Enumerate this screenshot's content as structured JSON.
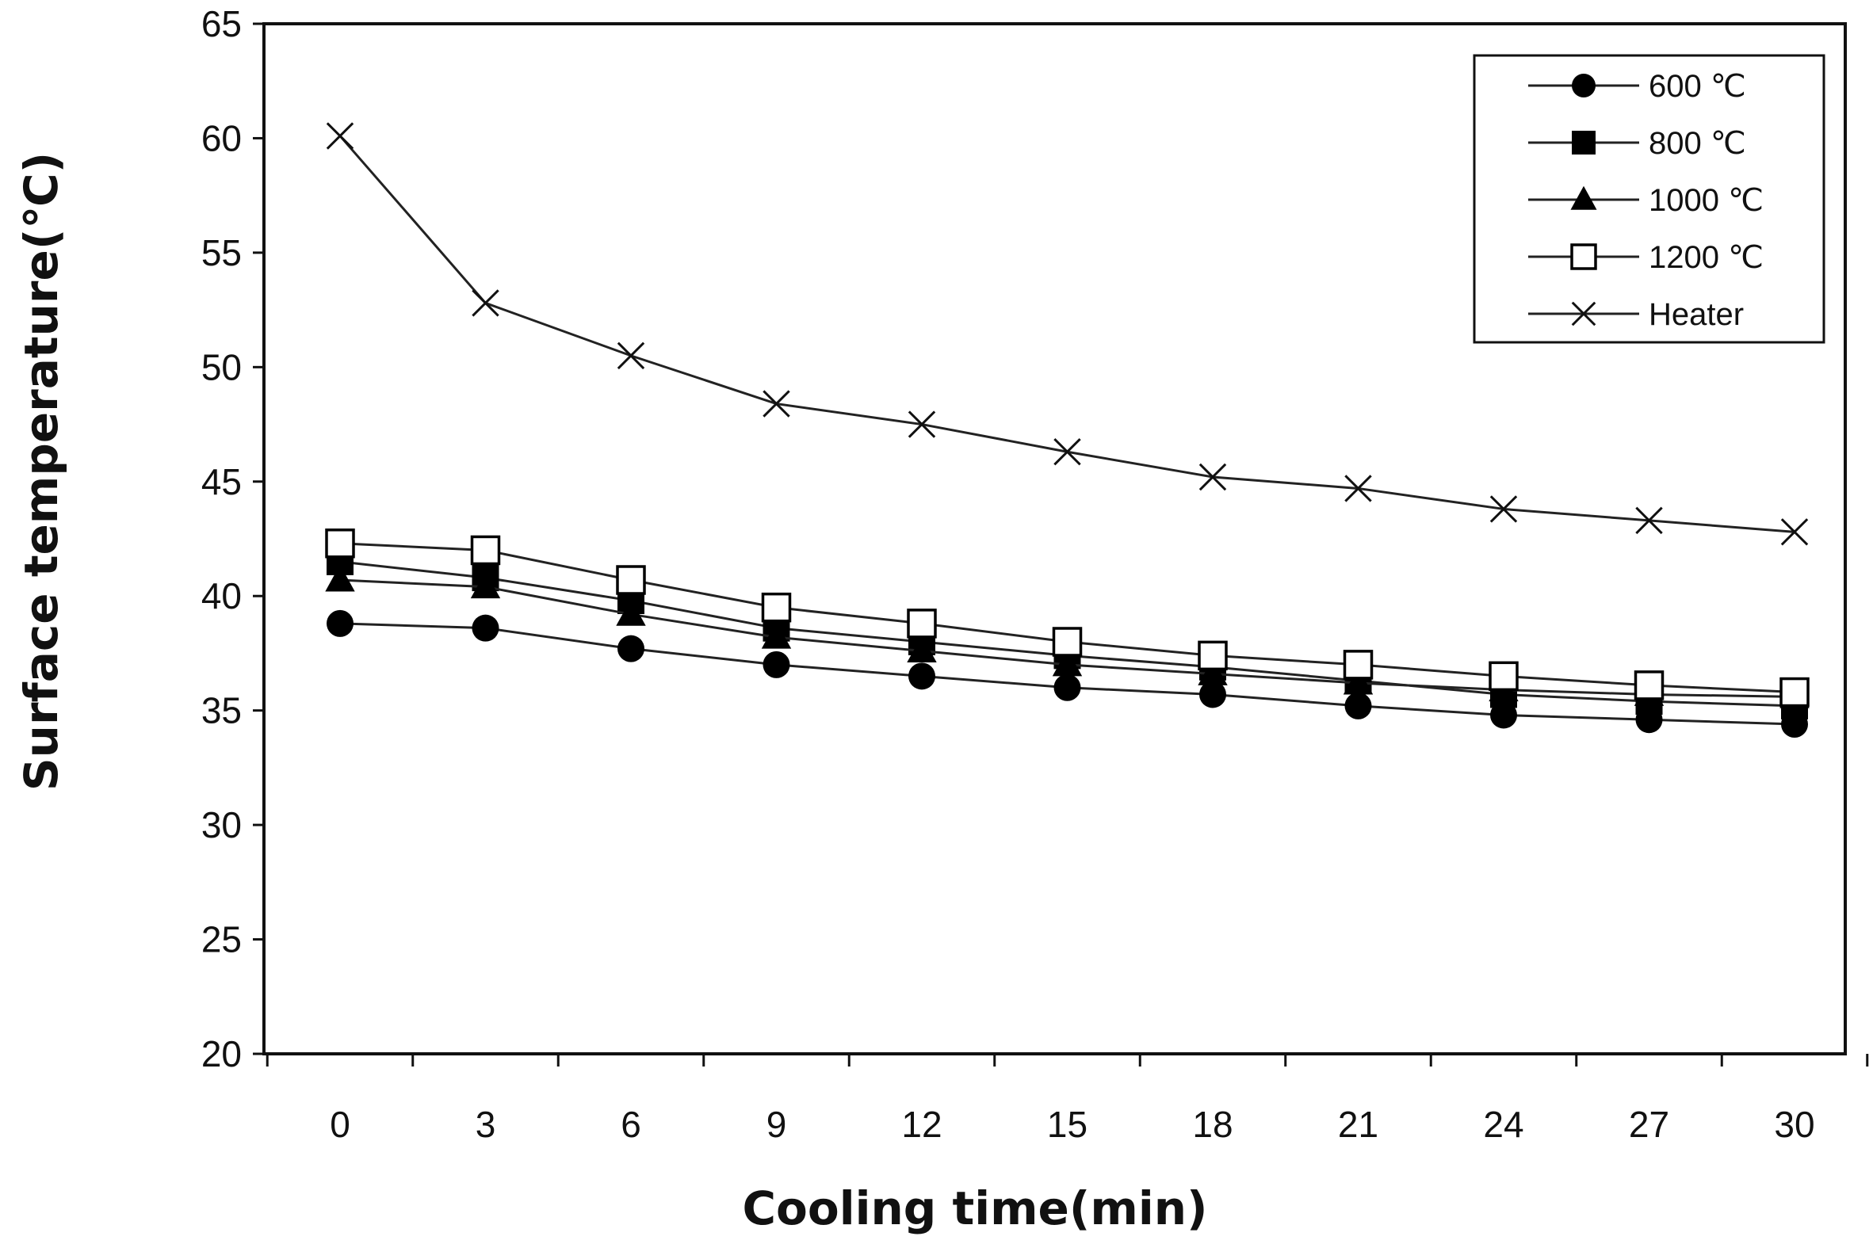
{
  "chart_data": {
    "type": "line",
    "title": "",
    "xlabel": "Cooling time(min)",
    "ylabel": "Surface temperature(℃)",
    "x": [
      0,
      3,
      6,
      9,
      12,
      15,
      18,
      21,
      24,
      27,
      30
    ],
    "ylim": [
      20,
      65
    ],
    "yticks": [
      20,
      25,
      30,
      35,
      40,
      45,
      50,
      55,
      60,
      65
    ],
    "grid": false,
    "legend_position": "top-right",
    "series": [
      {
        "name": "600 ℃",
        "marker": "circle",
        "values": [
          38.8,
          38.6,
          37.7,
          37.0,
          36.5,
          36.0,
          35.7,
          35.2,
          34.8,
          34.6,
          34.4
        ]
      },
      {
        "name": "800 ℃",
        "marker": "square",
        "values": [
          41.5,
          40.8,
          39.8,
          38.6,
          38.0,
          37.4,
          36.9,
          36.3,
          35.7,
          35.4,
          35.2
        ]
      },
      {
        "name": "1000 ℃",
        "marker": "triangle",
        "values": [
          40.7,
          40.4,
          39.2,
          38.2,
          37.6,
          37.0,
          36.6,
          36.2,
          35.9,
          35.7,
          35.6
        ]
      },
      {
        "name": "1200 ℃",
        "marker": "open-square",
        "values": [
          42.3,
          42.0,
          40.7,
          39.5,
          38.8,
          38.0,
          37.4,
          37.0,
          36.5,
          36.1,
          35.8
        ]
      },
      {
        "name": "Heater",
        "marker": "x",
        "values": [
          60.1,
          52.8,
          50.5,
          48.4,
          47.5,
          46.3,
          45.2,
          44.7,
          43.8,
          43.3,
          42.8
        ]
      }
    ]
  }
}
